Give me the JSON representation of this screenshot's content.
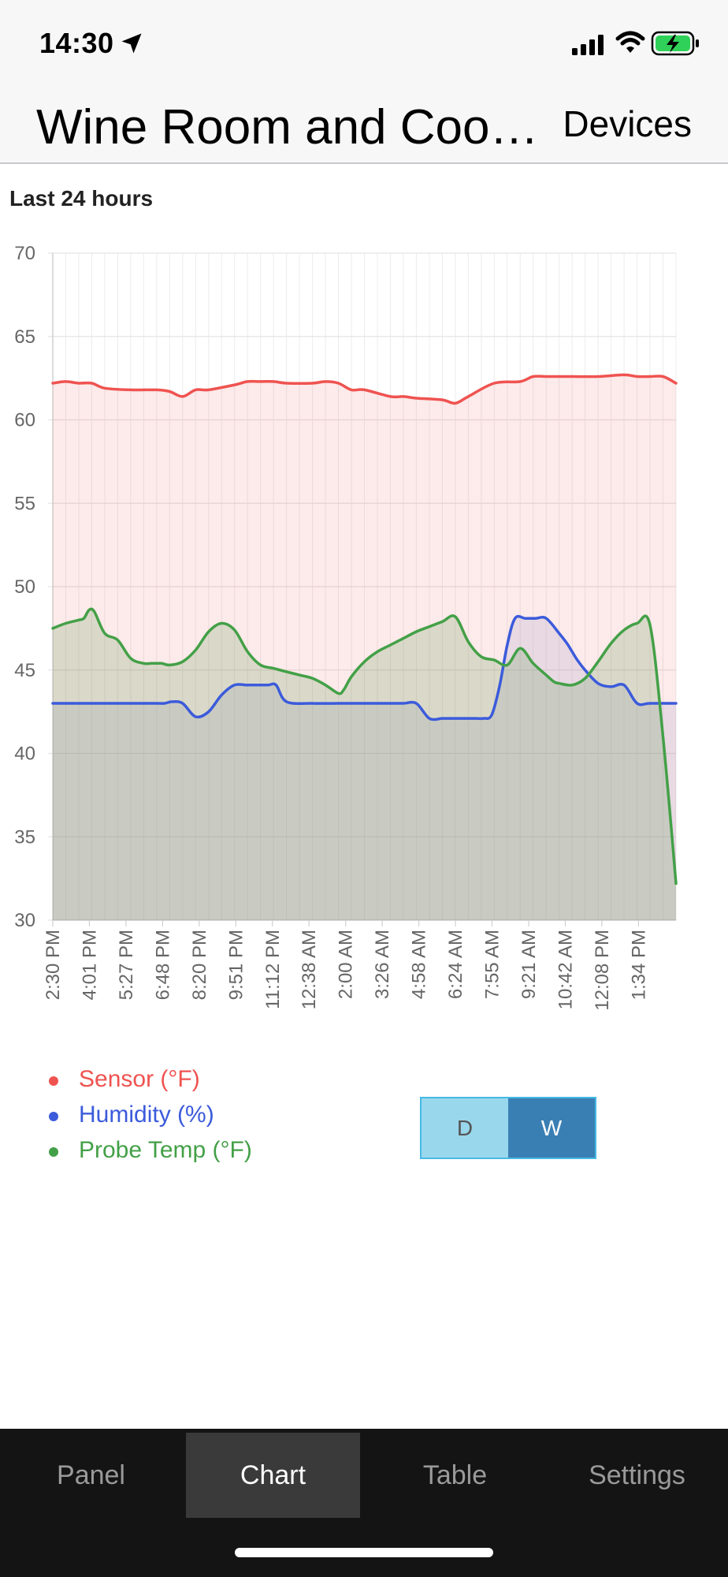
{
  "status_bar": {
    "time": "14:30",
    "icons": [
      "location-arrow-icon",
      "cellular-signal-icon",
      "wifi-icon",
      "battery-charging-icon"
    ],
    "battery_color": "#30d158"
  },
  "nav": {
    "title": "Wine Room and Cool...",
    "devices_label": "Devices"
  },
  "range_label": "Last 24 hours",
  "chart_data": {
    "type": "area",
    "title": "",
    "xlabel": "",
    "ylabel": "",
    "ylim": [
      30,
      70
    ],
    "yticks": [
      30,
      35,
      40,
      45,
      50,
      55,
      60,
      65,
      70
    ],
    "xlim": [
      0,
      24
    ],
    "x_tick_labels": [
      "2:30 PM",
      "4:01 PM",
      "5:27 PM",
      "6:48 PM",
      "8:20 PM",
      "9:51 PM",
      "11:12 PM",
      "12:38 AM",
      "2:00 AM",
      "3:26 AM",
      "4:58 AM",
      "6:24 AM",
      "7:55 AM",
      "9:21 AM",
      "10:42 AM",
      "12:08 PM",
      "1:34 PM"
    ],
    "grid": true,
    "legend_position": "bottom-left",
    "series": [
      {
        "name": "Sensor (°F)",
        "color": "#ef5350",
        "fill": "rgba(239,83,80,0.12)",
        "x": [
          0,
          0.5,
          1,
          1.5,
          2,
          3,
          4,
          4.5,
          5,
          5.5,
          6,
          7,
          7.5,
          8,
          8.5,
          9,
          10,
          10.5,
          11,
          11.5,
          12,
          13,
          13.5,
          14,
          15,
          15.5,
          16,
          17,
          18,
          18.5,
          19,
          19.5,
          20,
          21,
          22,
          22.5,
          23,
          23.5,
          24
        ],
        "values": [
          62.2,
          62.3,
          62.2,
          62.2,
          61.9,
          61.8,
          61.8,
          61.7,
          61.4,
          61.8,
          61.8,
          62.1,
          62.3,
          62.3,
          62.3,
          62.2,
          62.2,
          62.3,
          62.2,
          61.8,
          61.8,
          61.4,
          61.4,
          61.3,
          61.2,
          61.0,
          61.4,
          62.2,
          62.3,
          62.6,
          62.6,
          62.6,
          62.6,
          62.6,
          62.7,
          62.6,
          62.6,
          62.6,
          62.2
        ]
      },
      {
        "name": "Humidity (%)",
        "color": "#3b5bdb",
        "fill": "rgba(160,160,200,0.22)",
        "x": [
          0,
          1,
          2,
          3,
          4,
          4.3,
          4.6,
          5,
          5.5,
          6,
          6.5,
          7,
          7.5,
          8,
          8.3,
          8.6,
          9,
          10,
          11,
          11.2,
          11.6,
          12,
          12.5,
          13,
          13.5,
          14,
          14.5,
          15,
          15.3,
          15.6,
          16,
          16.3,
          16.6,
          16.9,
          17.2,
          17.5,
          17.8,
          18.2,
          18.6,
          19,
          19.5,
          19.8,
          20,
          20.2,
          20.5,
          21,
          21.5,
          22,
          22.5,
          23,
          24
        ],
        "values": [
          43,
          43,
          43,
          43,
          43,
          43,
          43.1,
          43,
          42.2,
          42.5,
          43.5,
          44.1,
          44.1,
          44.1,
          44.1,
          44.1,
          43.1,
          43,
          43,
          43,
          43,
          43,
          43,
          43,
          43,
          43,
          42.1,
          42.1,
          42.1,
          42.1,
          42.1,
          42.1,
          42.1,
          42.3,
          44,
          46.5,
          48.1,
          48.1,
          48.1,
          48.1,
          47.2,
          46.6,
          46.1,
          45.6,
          45,
          44.2,
          44,
          44.1,
          43,
          43,
          43
        ]
      },
      {
        "name": "Probe Temp (°F)",
        "color": "#43a047",
        "fill": "rgba(80,150,70,0.20)",
        "x": [
          0,
          0.5,
          1,
          1.2,
          1.4,
          1.6,
          2,
          2.5,
          3,
          3.5,
          3.8,
          4,
          4.2,
          4.5,
          5,
          5.5,
          6,
          6.5,
          7,
          7.5,
          8,
          8.5,
          9,
          9.5,
          10,
          10.5,
          11,
          11.2,
          11.5,
          12,
          12.5,
          13,
          13.5,
          14,
          14.5,
          15,
          15.5,
          16,
          16.5,
          17,
          17.5,
          18,
          18.5,
          19,
          19.3,
          19.5,
          20,
          20.5,
          21,
          21.5,
          22,
          22.5,
          23,
          23.5,
          24
        ],
        "values": [
          47.5,
          47.8,
          48.0,
          48.1,
          48.6,
          48.5,
          47.2,
          46.8,
          45.7,
          45.4,
          45.4,
          45.4,
          45.4,
          45.3,
          45.5,
          46.2,
          47.3,
          47.8,
          47.4,
          46.1,
          45.3,
          45.1,
          44.9,
          44.7,
          44.5,
          44.1,
          43.6,
          43.8,
          44.6,
          45.5,
          46.1,
          46.5,
          46.9,
          47.3,
          47.6,
          47.9,
          48.2,
          46.7,
          45.8,
          45.6,
          45.3,
          46.3,
          45.4,
          44.7,
          44.3,
          44.2,
          44.1,
          44.5,
          45.5,
          46.6,
          47.4,
          47.8,
          47.7,
          41.0,
          32.2
        ]
      }
    ]
  },
  "legend": [
    {
      "label": "Sensor (°F)",
      "color": "#ef5350"
    },
    {
      "label": "Humidity (%)",
      "color": "#3b5bdb"
    },
    {
      "label": "Probe Temp (°F)",
      "color": "#43a047"
    }
  ],
  "period_toggle": {
    "options": [
      "D",
      "W"
    ],
    "selected": "W"
  },
  "tabs": [
    {
      "label": "Panel",
      "active": false
    },
    {
      "label": "Chart",
      "active": true
    },
    {
      "label": "Table",
      "active": false
    },
    {
      "label": "Settings",
      "active": false
    }
  ]
}
